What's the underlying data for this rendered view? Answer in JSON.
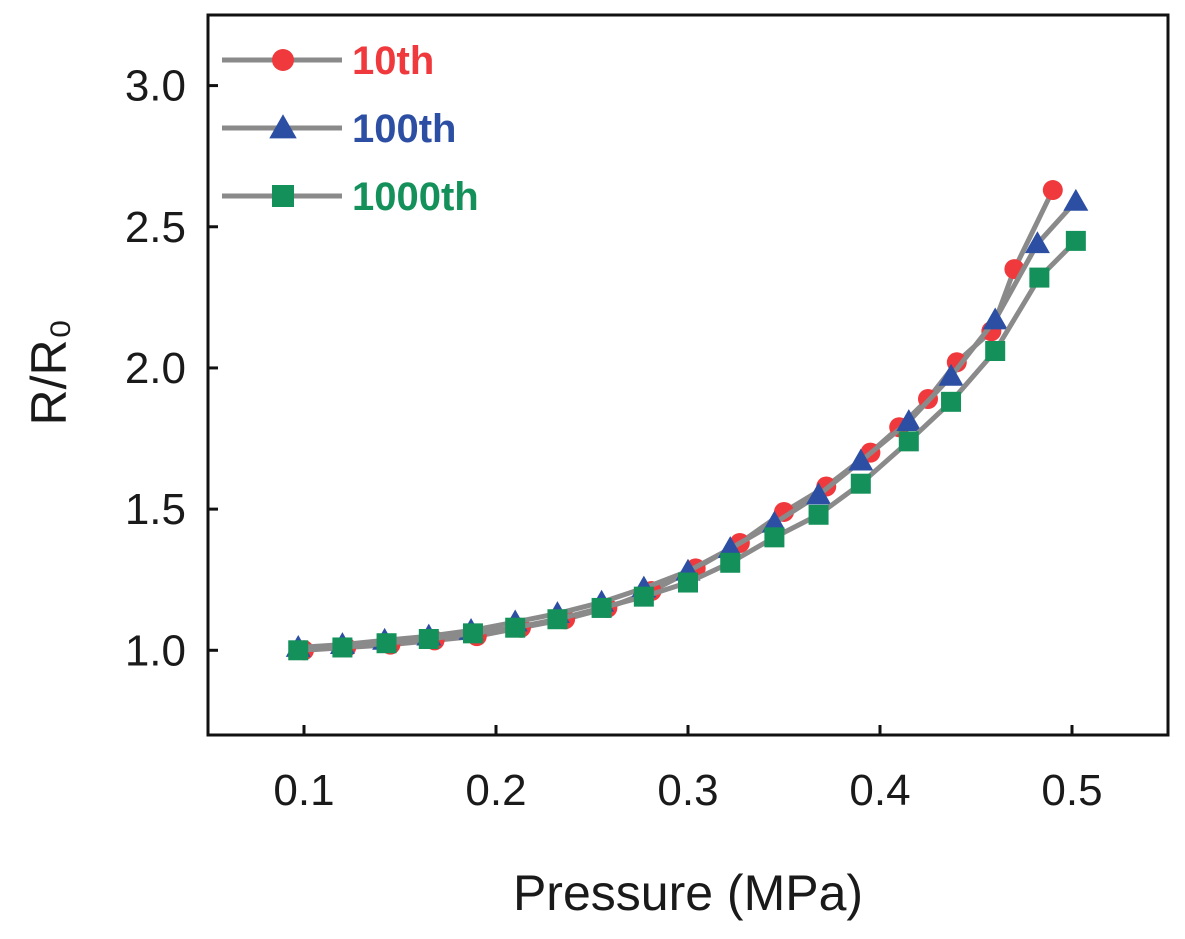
{
  "chart_data": {
    "type": "line",
    "title": "",
    "xlabel": "Pressure (MPa)",
    "ylabel": "R/R₀",
    "xlim": [
      0.05,
      0.55
    ],
    "ylim": [
      0.7,
      3.25
    ],
    "xticks": [
      "0.1",
      "0.2",
      "0.3",
      "0.4",
      "0.5"
    ],
    "xtick_values": [
      0.1,
      0.2,
      0.3,
      0.4,
      0.5
    ],
    "yticks": [
      "1.0",
      "1.5",
      "2.0",
      "2.5",
      "3.0"
    ],
    "ytick_values": [
      1.0,
      1.5,
      2.0,
      2.5,
      3.0
    ],
    "grid": false,
    "legend_position": "top-left",
    "line_color": "#8a8a8a",
    "series": [
      {
        "name": "10th",
        "marker": "circle",
        "color": "#f0393d",
        "x": [
          0.1,
          0.122,
          0.145,
          0.168,
          0.19,
          0.213,
          0.236,
          0.258,
          0.281,
          0.304,
          0.327,
          0.35,
          0.372,
          0.395,
          0.41,
          0.425,
          0.44,
          0.458,
          0.47,
          0.49
        ],
        "y": [
          1.0,
          1.01,
          1.02,
          1.035,
          1.05,
          1.08,
          1.11,
          1.15,
          1.21,
          1.29,
          1.38,
          1.49,
          1.58,
          1.7,
          1.79,
          1.89,
          2.02,
          2.13,
          2.35,
          2.63
        ]
      },
      {
        "name": "100th",
        "marker": "triangle",
        "color": "#2d4fa3",
        "x": [
          0.097,
          0.12,
          0.142,
          0.165,
          0.187,
          0.21,
          0.232,
          0.255,
          0.277,
          0.3,
          0.322,
          0.345,
          0.368,
          0.39,
          0.415,
          0.437,
          0.46,
          0.482,
          0.502
        ],
        "y": [
          1.01,
          1.02,
          1.035,
          1.05,
          1.07,
          1.1,
          1.13,
          1.17,
          1.22,
          1.28,
          1.36,
          1.45,
          1.55,
          1.67,
          1.81,
          1.97,
          2.17,
          2.44,
          2.59
        ]
      },
      {
        "name": "1000th",
        "marker": "square",
        "color": "#14915a",
        "x": [
          0.097,
          0.12,
          0.143,
          0.165,
          0.188,
          0.21,
          0.232,
          0.255,
          0.277,
          0.3,
          0.322,
          0.345,
          0.368,
          0.39,
          0.415,
          0.437,
          0.46,
          0.483,
          0.502
        ],
        "y": [
          1.0,
          1.01,
          1.025,
          1.04,
          1.06,
          1.08,
          1.11,
          1.15,
          1.19,
          1.24,
          1.31,
          1.4,
          1.48,
          1.59,
          1.74,
          1.88,
          2.06,
          2.32,
          2.45
        ]
      }
    ]
  }
}
